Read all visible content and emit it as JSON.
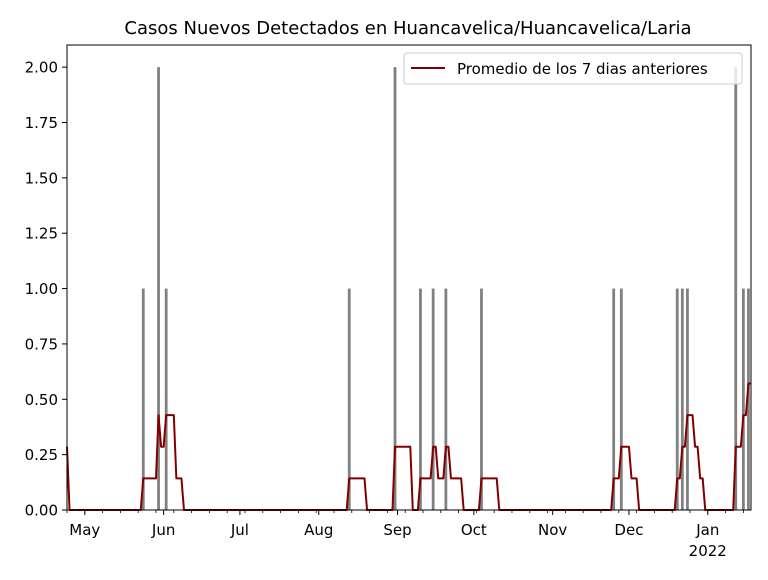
{
  "chart_data": {
    "type": "bar",
    "title": "Casos Nuevos Detectados en Huancavelica/Huancavelica/Laria",
    "xlabel": "",
    "ylabel": "",
    "x_axis": {
      "type": "date",
      "range": [
        "2021-04-24",
        "2022-01-18"
      ],
      "ticks": [
        {
          "date": "2021-05-01",
          "label": "May",
          "sublabel": ""
        },
        {
          "date": "2021-06-01",
          "label": "Jun",
          "sublabel": ""
        },
        {
          "date": "2021-07-01",
          "label": "Jul",
          "sublabel": ""
        },
        {
          "date": "2021-08-01",
          "label": "Aug",
          "sublabel": ""
        },
        {
          "date": "2021-09-01",
          "label": "Sep",
          "sublabel": ""
        },
        {
          "date": "2021-10-01",
          "label": "Oct",
          "sublabel": ""
        },
        {
          "date": "2021-11-01",
          "label": "Nov",
          "sublabel": ""
        },
        {
          "date": "2021-12-01",
          "label": "Dec",
          "sublabel": ""
        },
        {
          "date": "2022-01-01",
          "label": "Jan",
          "sublabel": "2022"
        }
      ]
    },
    "y_axis": {
      "ylim": [
        0,
        2.1
      ],
      "ticks": [
        "0.00",
        "0.25",
        "0.50",
        "0.75",
        "1.00",
        "1.25",
        "1.50",
        "1.75",
        "2.00"
      ]
    },
    "grid": false,
    "legend": {
      "placement": "top-right",
      "entries": [
        "Promedio de los 7 dias anteriores"
      ]
    },
    "bar_color": "#808080",
    "line_color": "#800000",
    "series": [
      {
        "name": "",
        "kind": "bar",
        "points": [
          {
            "date": "2021-05-24",
            "value": 1
          },
          {
            "date": "2021-05-30",
            "value": 2
          },
          {
            "date": "2021-06-02",
            "value": 1
          },
          {
            "date": "2021-08-13",
            "value": 1
          },
          {
            "date": "2021-08-31",
            "value": 2
          },
          {
            "date": "2021-09-10",
            "value": 1
          },
          {
            "date": "2021-09-15",
            "value": 1
          },
          {
            "date": "2021-09-20",
            "value": 1
          },
          {
            "date": "2021-10-04",
            "value": 1
          },
          {
            "date": "2021-11-25",
            "value": 1
          },
          {
            "date": "2021-11-28",
            "value": 1
          },
          {
            "date": "2021-12-20",
            "value": 1
          },
          {
            "date": "2021-12-22",
            "value": 1
          },
          {
            "date": "2021-12-24",
            "value": 1
          },
          {
            "date": "2022-01-12",
            "value": 2
          },
          {
            "date": "2022-01-15",
            "value": 1
          },
          {
            "date": "2022-01-17",
            "value": 1
          }
        ]
      },
      {
        "name": "Promedio de los 7 dias anteriores",
        "kind": "line",
        "window_days": 7,
        "initial_value": 0.2857
      }
    ]
  }
}
